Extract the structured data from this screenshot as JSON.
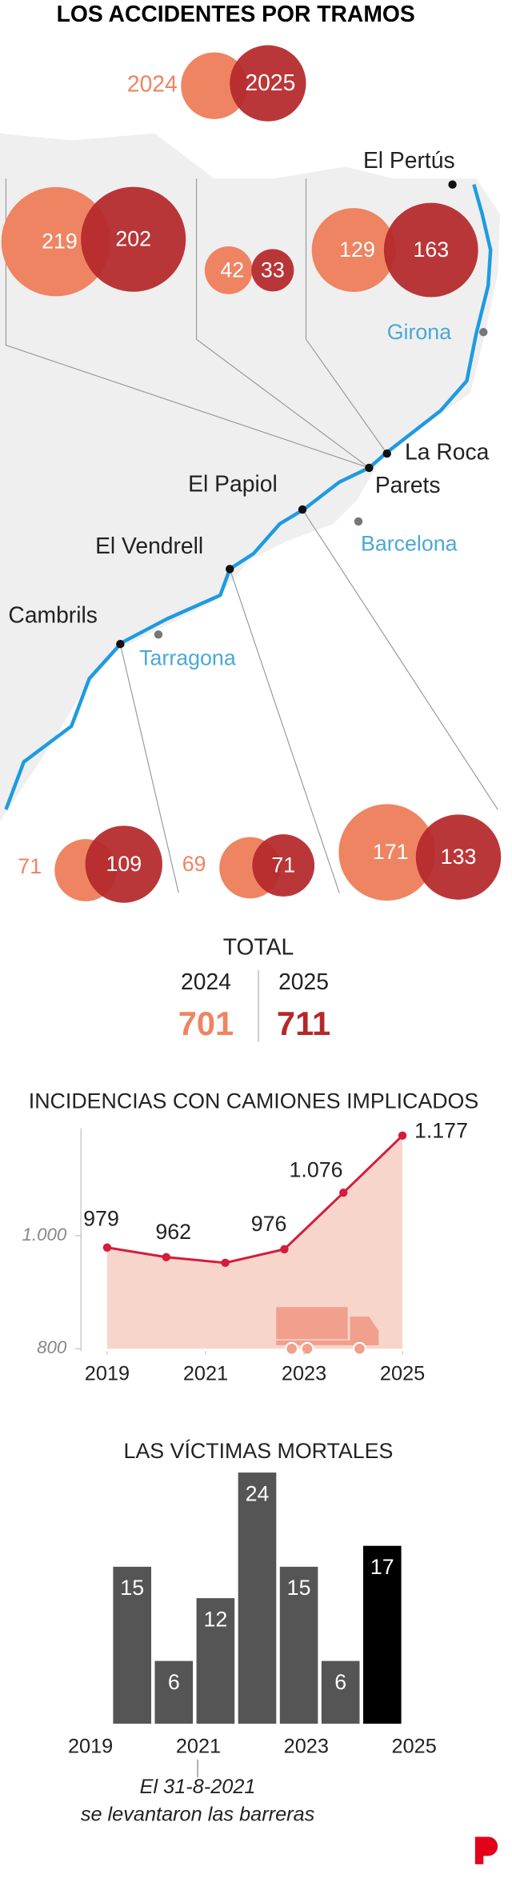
{
  "title": "LOS ACCIDENTES POR TRAMOS",
  "legend": [
    "2024",
    "2025"
  ],
  "colors": [
    "#ef8462",
    "#b5282a"
  ],
  "places": {
    "sections": [
      "El Pertús",
      "La Roca",
      "Parets",
      "El Papiol",
      "El Vendrell",
      "Cambrils"
    ],
    "cities": [
      "Girona",
      "Barcelona",
      "Tarragona"
    ]
  },
  "segments": [
    [
      219,
      202
    ],
    [
      42,
      33
    ],
    [
      129,
      163
    ],
    [
      71,
      109
    ],
    [
      69,
      71
    ],
    [
      171,
      133
    ]
  ],
  "total": {
    "label": "TOTAL",
    "years": [
      "2024",
      "2025"
    ],
    "values": [
      701,
      711
    ]
  },
  "chart_data": [
    {
      "type": "line",
      "title": "INCIDENCIAS CON CAMIONES IMPLICADOS",
      "x": [
        2019,
        2020.2,
        2021.4,
        2022.6,
        2023.8,
        2025
      ],
      "values": [
        979,
        962,
        952,
        976,
        1076,
        1177
      ],
      "value_labels": [
        "979",
        "962",
        null,
        "976",
        "1.076",
        "1.177"
      ],
      "color": "#d41c3c",
      "fill_color": "#f8d5cb",
      "xlim": [
        2019,
        2025
      ],
      "xticks": [
        2019,
        2021,
        2023,
        2025
      ],
      "ylim": [
        800,
        1190
      ],
      "yticks": [
        800,
        {
          "value": 1000,
          "label": "1.000"
        }
      ]
    },
    {
      "type": "bar",
      "title": "LAS VÍCTIMAS MORTALES",
      "categories": [
        "2019",
        null,
        "2021",
        null,
        "2023",
        null,
        "2025"
      ],
      "values": [
        15,
        6,
        12,
        24,
        15,
        6,
        17
      ],
      "colors": [
        "#555555",
        "#555555",
        "#555555",
        "#555555",
        "#555555",
        "#555555",
        "#000000"
      ],
      "ylim": [
        0,
        24
      ],
      "annotation": [
        "El 31-8-2021",
        "se levantaron las barreras"
      ]
    }
  ]
}
